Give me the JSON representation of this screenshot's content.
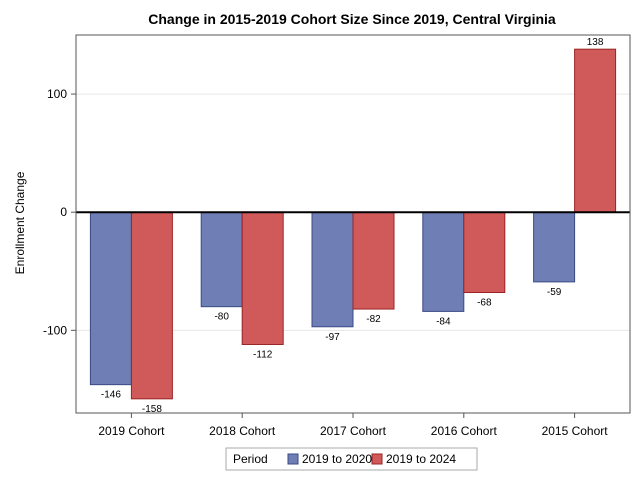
{
  "chart_data": {
    "type": "bar",
    "title": "Change in 2015-2019 Cohort Size Since 2019, Central Virginia",
    "xlabel": "",
    "ylabel": "Enrollment Change",
    "categories": [
      "2019 Cohort",
      "2018 Cohort",
      "2017 Cohort",
      "2016 Cohort",
      "2015 Cohort"
    ],
    "series": [
      {
        "name": "2019 to 2020",
        "values": [
          -146,
          -80,
          -97,
          -84,
          -59
        ],
        "color": "#6f7fb5"
      },
      {
        "name": "2019 to 2024",
        "values": [
          -158,
          -112,
          -82,
          -68,
          138
        ],
        "color": "#d05a5a"
      }
    ],
    "data_labels": {
      "2019 to 2020": [
        "-146",
        "-80",
        "-97",
        "-84",
        "-59"
      ],
      "2019 to 2024": [
        "-158",
        "-112",
        "-82",
        "-68",
        "138"
      ]
    },
    "ylim": [
      -170,
      150
    ],
    "yticks": [
      -100,
      0,
      100
    ],
    "ytick_labels": [
      "-100",
      "0",
      "100"
    ],
    "grid": true,
    "zero_line": true,
    "legend": {
      "title": "Period",
      "placement": "bottom-center"
    }
  }
}
